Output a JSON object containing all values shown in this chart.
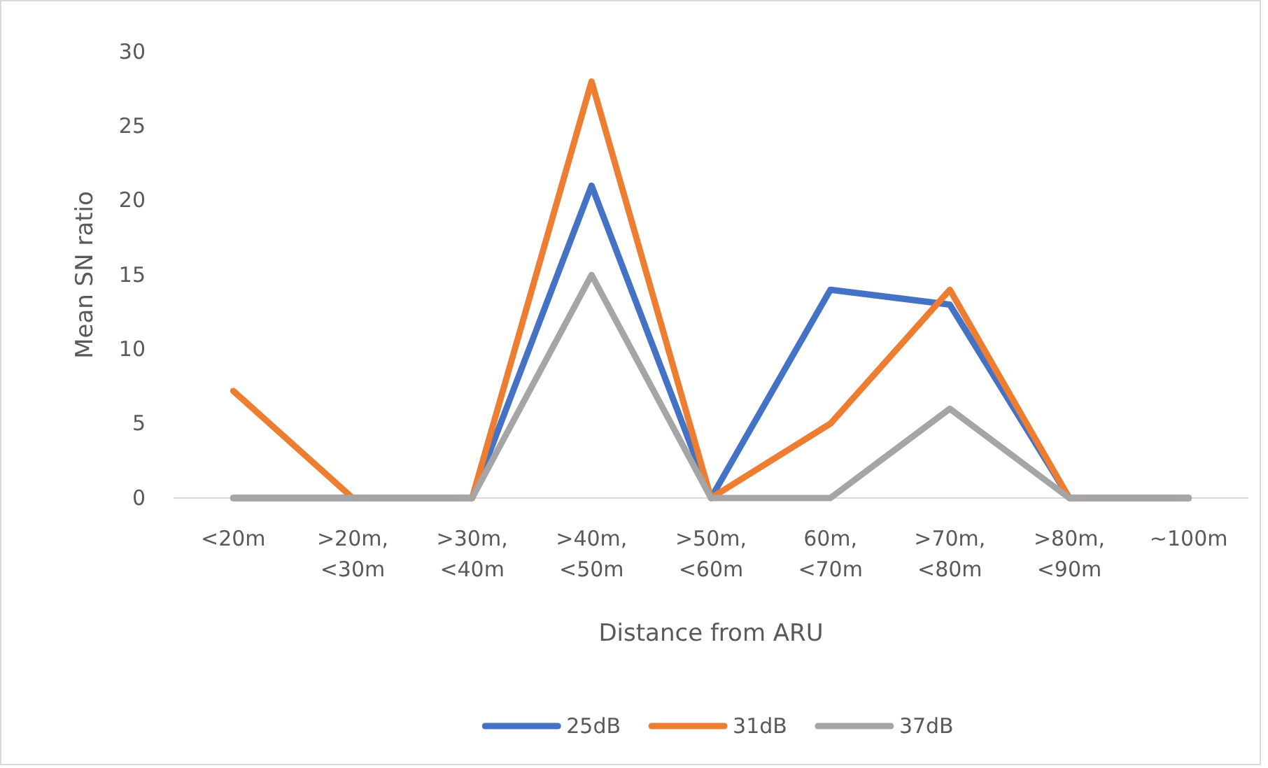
{
  "chart_data": {
    "type": "line",
    "xlabel": "Distance from ARU",
    "ylabel": "Mean SN ratio",
    "categories": [
      "<20m",
      ">20m, <30m",
      ">30m, <40m",
      ">40m, <50m",
      ">50m, <60m",
      "60m, <70m",
      ">70m, <80m",
      ">80m, <90m",
      "~100m"
    ],
    "series": [
      {
        "name": "25dB",
        "color": "#4472c4",
        "values": [
          0,
          0,
          0,
          21,
          0,
          14,
          13,
          0,
          0
        ]
      },
      {
        "name": "31dB",
        "color": "#ed7d31",
        "values": [
          7.2,
          0,
          0,
          28,
          0,
          5,
          14,
          0,
          0
        ]
      },
      {
        "name": "37dB",
        "color": "#a5a5a5",
        "values": [
          0,
          0,
          0,
          15,
          0,
          0,
          6,
          0,
          0
        ]
      }
    ],
    "ylim": [
      0,
      30
    ],
    "yticks": [
      0,
      5,
      10,
      15,
      20,
      25,
      30
    ],
    "grid": false,
    "legend": "bottom",
    "marker": "none",
    "line_style": "solid"
  }
}
